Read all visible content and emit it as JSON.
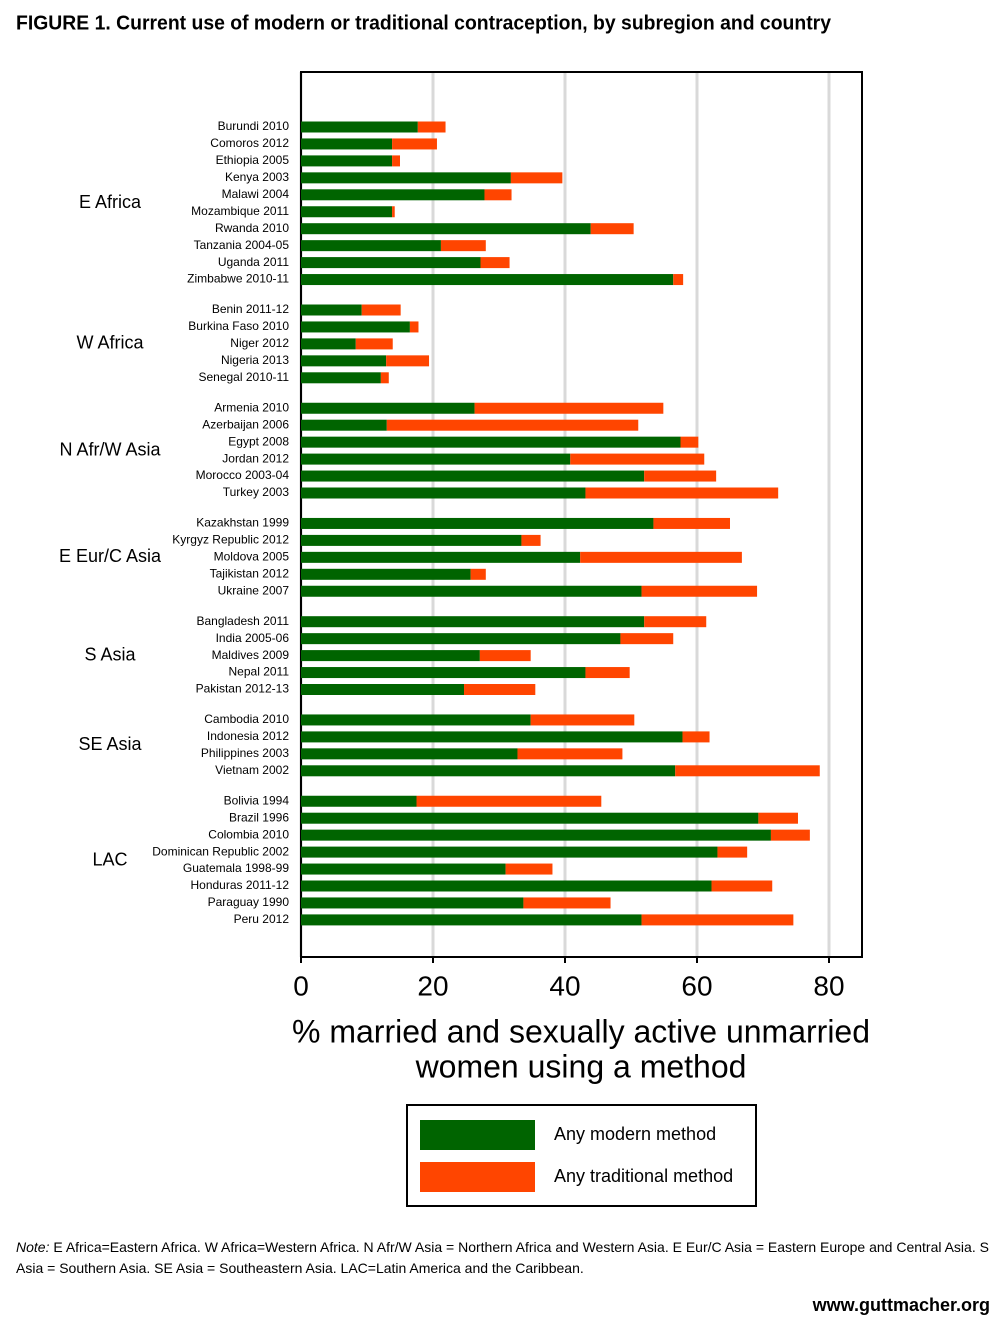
{
  "chart_data": {
    "type": "stacked-barh",
    "title": "FIGURE 1. Current use of modern or traditional contraception, by subregion and country",
    "x_label": [
      "% married and sexually active unmarried",
      "women using a method"
    ],
    "xlim": [
      0,
      85
    ],
    "xticks": [
      0,
      20,
      40,
      60,
      80
    ],
    "grid": true,
    "legend": "bottom",
    "groups": [
      {
        "label": "E Africa",
        "categories": [
          "Burundi 2010",
          "Comoros 2012",
          "Ethiopia 2005",
          "Kenya 2003",
          "Malawi 2004",
          "Mozambique 2011",
          "Rwanda 2010",
          "Tanzania 2004-05",
          "Uganda 2011",
          "Zimbabwe 2010-11"
        ]
      },
      {
        "label": "W Africa",
        "categories": [
          "Benin 2011-12",
          "Burkina Faso 2010",
          "Niger 2012",
          "Nigeria 2013",
          "Senegal 2010-11"
        ]
      },
      {
        "label": "N Afr/W Asia",
        "categories": [
          "Armenia 2010",
          "Azerbaijan 2006",
          "Egypt 2008",
          "Jordan 2012",
          "Morocco 2003-04",
          "Turkey 2003"
        ]
      },
      {
        "label": "E Eur/C Asia",
        "categories": [
          "Kazakhstan 1999",
          "Kyrgyz Republic 2012",
          "Moldova 2005",
          "Tajikistan 2012",
          "Ukraine 2007"
        ]
      },
      {
        "label": "S Asia",
        "categories": [
          "Bangladesh 2011",
          "India 2005-06",
          "Maldives 2009",
          "Nepal 2011",
          "Pakistan 2012-13"
        ]
      },
      {
        "label": "SE Asia",
        "categories": [
          "Cambodia 2010",
          "Indonesia 2012",
          "Philippines 2003",
          "Vietnam 2002"
        ]
      },
      {
        "label": "LAC",
        "categories": [
          "Bolivia 1994",
          "Brazil 1996",
          "Colombia 2010",
          "Dominican Republic 2002",
          "Guatemala 1998-99",
          "Honduras 2011-12",
          "Paraguay 1990",
          "Peru 2012"
        ]
      }
    ],
    "series": [
      {
        "name": "Any modern method",
        "color": "#006400",
        "values": [
          [
            17.7,
            13.8,
            13.8,
            31.8,
            27.8,
            13.8,
            43.9,
            21.2,
            27.2,
            56.4
          ],
          [
            9.2,
            16.5,
            8.3,
            12.9,
            12.1
          ],
          [
            26.3,
            13.0,
            57.5,
            40.8,
            52.0,
            43.1
          ],
          [
            53.4,
            33.4,
            42.3,
            25.7,
            51.6
          ],
          [
            52.0,
            48.4,
            27.1,
            43.1,
            24.7
          ],
          [
            34.8,
            57.8,
            32.8,
            56.7
          ],
          [
            17.5,
            69.3,
            71.2,
            63.1,
            31.0,
            62.2,
            33.7,
            51.6
          ]
        ]
      },
      {
        "name": "Any traditional method",
        "color": "#ff4500",
        "values": [
          [
            4.2,
            6.8,
            1.2,
            7.8,
            4.1,
            0.4,
            6.5,
            6.8,
            4.4,
            1.5
          ],
          [
            5.9,
            1.3,
            5.6,
            6.5,
            1.2
          ],
          [
            28.6,
            38.1,
            2.7,
            20.3,
            10.9,
            29.2
          ],
          [
            11.6,
            2.9,
            24.5,
            2.3,
            17.5
          ],
          [
            9.4,
            8.0,
            7.7,
            6.7,
            10.8
          ],
          [
            15.7,
            4.1,
            15.9,
            21.9
          ],
          [
            28.0,
            6.0,
            5.9,
            4.5,
            7.1,
            9.2,
            13.2,
            23.0
          ]
        ]
      }
    ],
    "note_label": "Note:",
    "note": "E Africa=Eastern Africa. W Africa=Western Africa. N Afr/W Asia = Northern Africa and Western Asia. E Eur/C Asia = Eastern Europe and Central Asia. S Asia = Southern Asia. SE Asia = Southeastern Asia. LAC=Latin America and the Caribbean.",
    "source": "www.guttmacher.org"
  }
}
